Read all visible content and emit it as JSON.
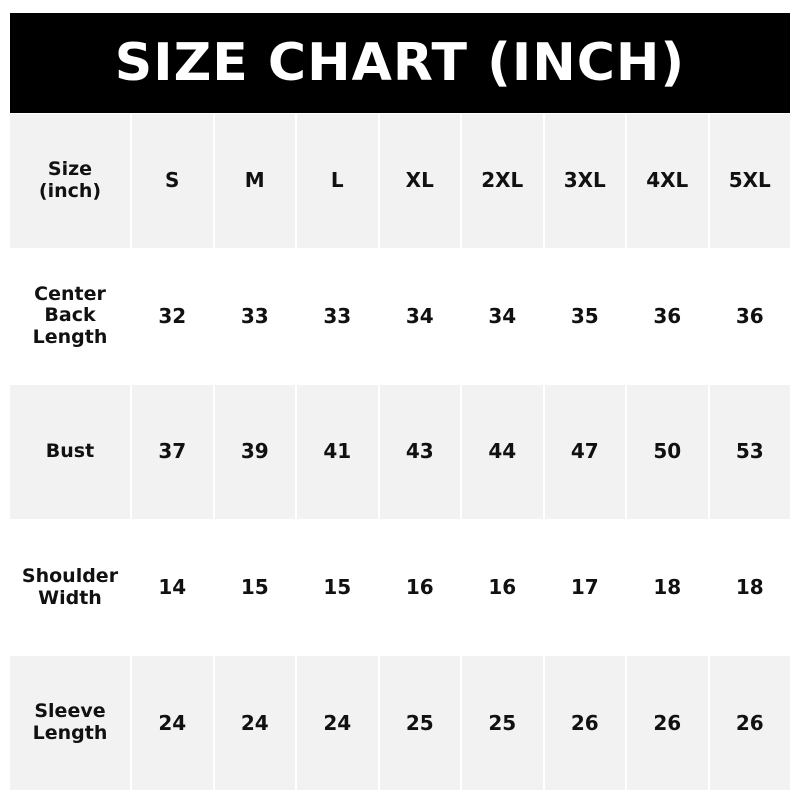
{
  "title": "SIZE CHART (INCH)",
  "colors": {
    "header_bg": "#000000",
    "header_text": "#ffffff",
    "stripe": "#f2f2f2"
  },
  "chart_data": {
    "type": "table",
    "title": "SIZE CHART (INCH)",
    "corner_label": "Size\n(inch)",
    "columns": [
      "S",
      "M",
      "L",
      "XL",
      "2XL",
      "3XL",
      "4XL",
      "5XL"
    ],
    "rows": [
      {
        "label": "Center\nBack\nLength",
        "values": [
          "32",
          "33",
          "33",
          "34",
          "34",
          "35",
          "36",
          "36"
        ]
      },
      {
        "label": "Bust",
        "values": [
          "37",
          "39",
          "41",
          "43",
          "44",
          "47",
          "50",
          "53"
        ]
      },
      {
        "label": "Shoulder\nWidth",
        "values": [
          "14",
          "15",
          "15",
          "16",
          "16",
          "17",
          "18",
          "18"
        ]
      },
      {
        "label": "Sleeve\nLength",
        "values": [
          "24",
          "24",
          "24",
          "25",
          "25",
          "26",
          "26",
          "26"
        ]
      }
    ]
  }
}
